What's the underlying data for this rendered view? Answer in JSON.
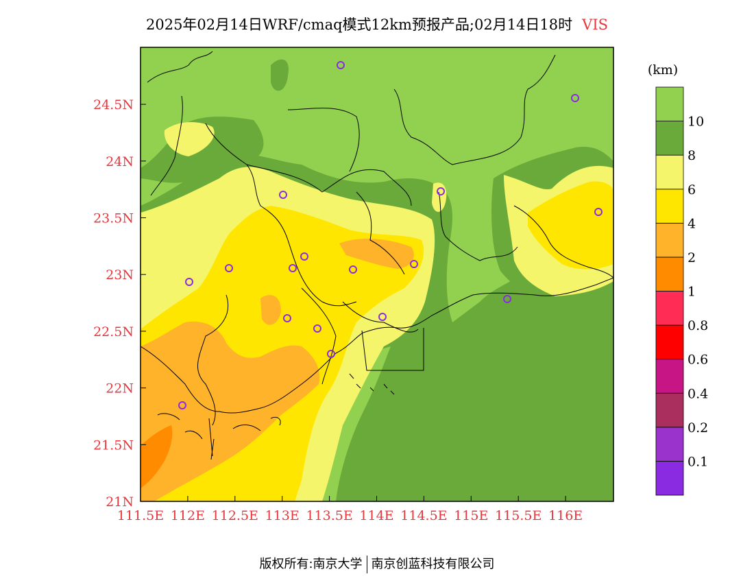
{
  "title": {
    "main": "2025年02月14日WRF/cmaq模式12km预报产品;02月14日18时",
    "variable": "VIS"
  },
  "colorbar": {
    "unit": "(km)",
    "colors": [
      "#8a2be2",
      "#9933cc",
      "#aa2f5e",
      "#c71585",
      "#ff0000",
      "#ff2c55",
      "#ff8c00",
      "#ffb32a",
      "#ffe600",
      "#f5f56b",
      "#6aaa3a",
      "#92d050"
    ],
    "labels": [
      "0.1",
      "0.2",
      "0.4",
      "0.6",
      "0.8",
      "1",
      "2",
      "4",
      "6",
      "8",
      "10"
    ]
  },
  "axes": {
    "x_ticks": [
      "111.5E",
      "112E",
      "112.5E",
      "113E",
      "113.5E",
      "114E",
      "114.5E",
      "115E",
      "115.5E",
      "116E"
    ],
    "y_ticks": [
      "21N",
      "21.5N",
      "22N",
      "22.5N",
      "23N",
      "23.5N",
      "24N",
      "24.5N"
    ]
  },
  "map_colors": {
    "light_green": "#92d050",
    "dark_green": "#6aaa3a",
    "light_yellow": "#f5f56b",
    "yellow": "#ffe600",
    "light_orange": "#ffb32a",
    "orange": "#ff8c00",
    "marker": "#8a2be2"
  },
  "footer": {
    "left": "版权所有:南京大学",
    "right": "南京创蓝科技有限公司"
  }
}
